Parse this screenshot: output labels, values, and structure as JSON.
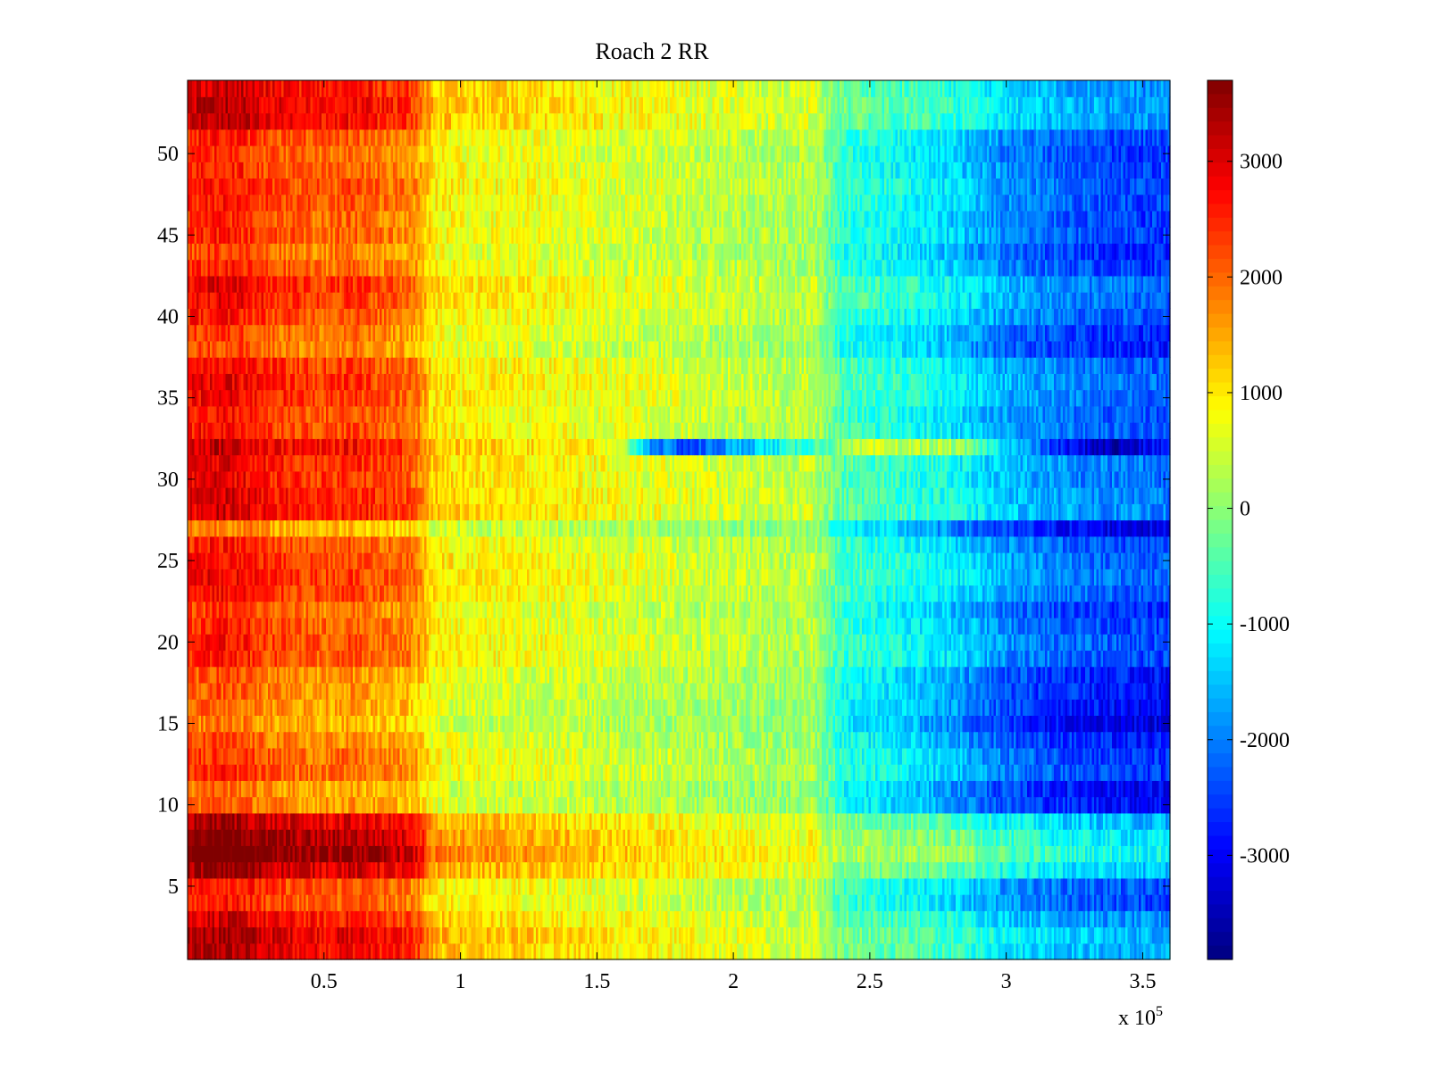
{
  "chart_data": {
    "type": "heatmap",
    "title": "Roach 2 RR",
    "xlabel": "",
    "ylabel": "",
    "x_multiplier": {
      "base": "x 10",
      "exponent": "5"
    },
    "xlim": [
      0,
      3.6
    ],
    "ylim": [
      0.5,
      54.5
    ],
    "x_ticks": [
      0.5,
      1,
      1.5,
      2,
      2.5,
      3,
      3.5
    ],
    "x_tick_labels": [
      "0.5",
      "1",
      "1.5",
      "2",
      "2.5",
      "3",
      "3.5"
    ],
    "y_ticks": [
      5,
      10,
      15,
      20,
      25,
      30,
      35,
      40,
      45,
      50
    ],
    "y_tick_labels": [
      "5",
      "10",
      "15",
      "20",
      "25",
      "30",
      "35",
      "40",
      "45",
      "50"
    ],
    "rows": 54,
    "colormap": "jet",
    "colorbar": {
      "clim": [
        -3900,
        3700
      ],
      "ticks": [
        3000,
        2000,
        1000,
        0,
        -1000,
        -2000,
        -3000
      ],
      "tick_labels": [
        "3000",
        "2000",
        "1000",
        "0",
        "-1000",
        "-2000",
        "-3000"
      ]
    },
    "profile_note": "approximate mean value per column band (x in units of 10^5)",
    "profile": {
      "x": [
        0,
        0.1,
        0.2,
        0.3,
        0.4,
        0.5,
        0.6,
        0.7,
        0.8,
        0.85,
        0.9,
        1.0,
        1.2,
        1.4,
        1.6,
        1.8,
        2.0,
        2.2,
        2.3,
        2.35,
        2.4,
        2.6,
        2.8,
        3.0,
        3.2,
        3.4,
        3.6
      ],
      "values": [
        2200,
        2400,
        2300,
        2000,
        1900,
        1800,
        1900,
        1700,
        1600,
        1400,
        800,
        700,
        650,
        550,
        450,
        350,
        250,
        150,
        250,
        -300,
        -800,
        -1100,
        -1500,
        -2100,
        -2400,
        -2600,
        -2700
      ]
    },
    "row_offsets": [
      {
        "row": 1,
        "delta": 800
      },
      {
        "row": 2,
        "delta": 900
      },
      {
        "row": 3,
        "delta": 600
      },
      {
        "row": 4,
        "delta": 200
      },
      {
        "row": 5,
        "delta": 250
      },
      {
        "row": 6,
        "delta": 1000
      },
      {
        "row": 7,
        "delta": 1400
      },
      {
        "row": 8,
        "delta": 1200
      },
      {
        "row": 9,
        "delta": 900
      },
      {
        "row": 10,
        "delta": -200
      },
      {
        "row": 11,
        "delta": -300
      },
      {
        "row": 12,
        "delta": 100
      },
      {
        "row": 13,
        "delta": 50
      },
      {
        "row": 14,
        "delta": -150
      },
      {
        "row": 15,
        "delta": -400
      },
      {
        "row": 16,
        "delta": -250
      },
      {
        "row": 17,
        "delta": -200
      },
      {
        "row": 18,
        "delta": -150
      },
      {
        "row": 19,
        "delta": 200
      },
      {
        "row": 20,
        "delta": 250
      },
      {
        "row": 21,
        "delta": 150
      },
      {
        "row": 22,
        "delta": 0
      },
      {
        "row": 23,
        "delta": 300
      },
      {
        "row": 24,
        "delta": 400
      },
      {
        "row": 25,
        "delta": 350
      },
      {
        "row": 26,
        "delta": 200
      },
      {
        "row": 27,
        "delta": -400
      },
      {
        "row": 28,
        "delta": 600
      },
      {
        "row": 29,
        "delta": 550
      },
      {
        "row": 30,
        "delta": 450
      },
      {
        "row": 31,
        "delta": 500
      },
      {
        "row": 32,
        "delta": 700
      },
      {
        "row": 33,
        "delta": 300
      },
      {
        "row": 34,
        "delta": 250
      },
      {
        "row": 35,
        "delta": 400
      },
      {
        "row": 36,
        "delta": 450
      },
      {
        "row": 37,
        "delta": 350
      },
      {
        "row": 38,
        "delta": -100
      },
      {
        "row": 39,
        "delta": 0
      },
      {
        "row": 40,
        "delta": 250
      },
      {
        "row": 41,
        "delta": 400
      },
      {
        "row": 42,
        "delta": 450
      },
      {
        "row": 43,
        "delta": 100
      },
      {
        "row": 44,
        "delta": -50
      },
      {
        "row": 45,
        "delta": 150
      },
      {
        "row": 46,
        "delta": 100
      },
      {
        "row": 47,
        "delta": 200
      },
      {
        "row": 48,
        "delta": 250
      },
      {
        "row": 49,
        "delta": 150
      },
      {
        "row": 50,
        "delta": 100
      },
      {
        "row": 51,
        "delta": 200
      },
      {
        "row": 52,
        "delta": 700
      },
      {
        "row": 53,
        "delta": 750
      },
      {
        "row": 54,
        "delta": 650
      }
    ],
    "anomaly": {
      "row": 32,
      "x": [
        1.4,
        1.6,
        1.7,
        1.85,
        2.0,
        2.2,
        2.35,
        2.5,
        2.8,
        3.0,
        3.2,
        3.4,
        3.6
      ],
      "values": [
        1400,
        200,
        -1800,
        -2500,
        -1700,
        -900,
        -300,
        400,
        200,
        -1200,
        -2800,
        -3600,
        -2700
      ]
    }
  }
}
